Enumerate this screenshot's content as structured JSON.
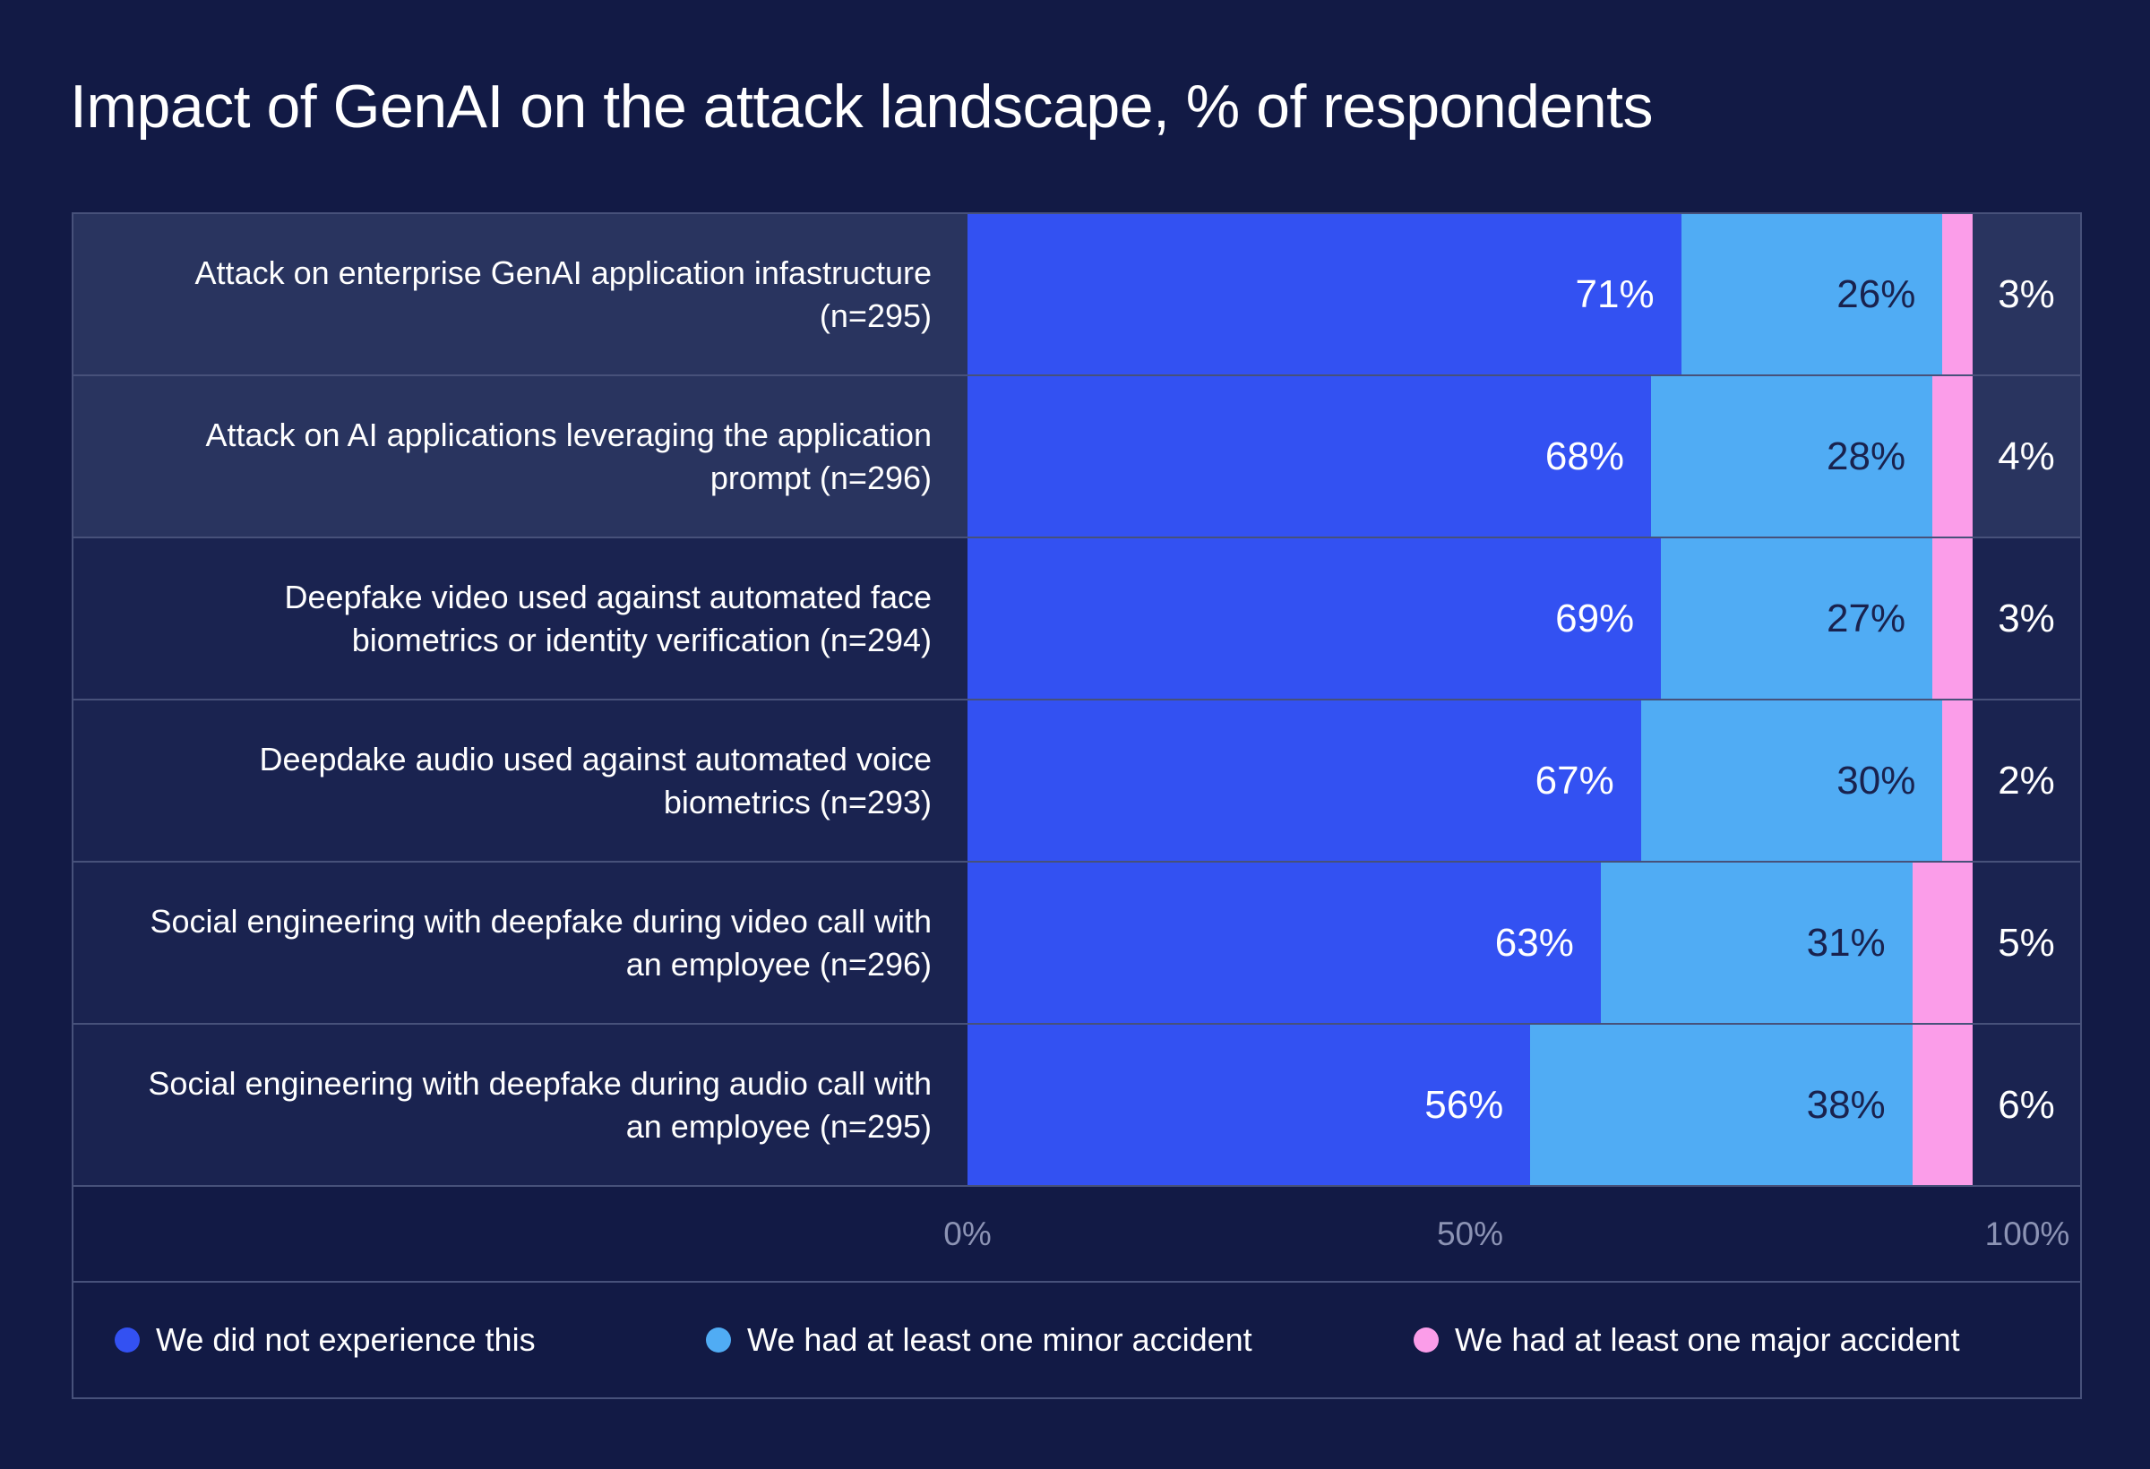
{
  "title": "Impact of GenAI on the attack landscape, % of respondents",
  "colors": {
    "page_bg": "#121A45",
    "row_highlight_bg": "#29345F",
    "row_bg": "#1A2350",
    "border": "#47517A",
    "series_blue": "#3351F2",
    "series_light_blue": "#50ACF4",
    "series_pink": "#FB9DE9",
    "label_on_light_blue": "#19224E",
    "axis_text": "#8C93B4",
    "text": "#FFFFFF"
  },
  "rows": [
    {
      "label": "Attack on enterprise GenAI application infastructure (n=295)",
      "display": [
        "71%",
        "26%",
        "3%"
      ]
    },
    {
      "label": "Attack on AI applications leveraging the application prompt (n=296)",
      "display": [
        "68%",
        "28%",
        "4%"
      ]
    },
    {
      "label": "Deepfake video used against automated face biometrics or identity verification (n=294)",
      "display": [
        "69%",
        "27%",
        "3%"
      ]
    },
    {
      "label": "Deepdake audio used against automated voice biometrics (n=293)",
      "display": [
        "67%",
        "30%",
        "2%"
      ]
    },
    {
      "label": "Social engineering with deepfake during video call with an employee (n=296)",
      "display": [
        "63%",
        "31%",
        "5%"
      ]
    },
    {
      "label": "Social engineering with deepfake during audio call with an employee (n=295)",
      "display": [
        "56%",
        "38%",
        "6%"
      ]
    }
  ],
  "axis": {
    "ticks": [
      "0%",
      "50%",
      "100%"
    ]
  },
  "legend": [
    {
      "label": "We did not experience this"
    },
    {
      "label": "We had at least one minor accident"
    },
    {
      "label": "We had at least one major accident"
    }
  ],
  "chart_data": {
    "type": "bar",
    "orientation": "horizontal",
    "stacked": true,
    "title": "Impact of GenAI on the attack landscape, % of respondents",
    "categories": [
      "Attack on enterprise GenAI application infastructure (n=295)",
      "Attack on AI applications leveraging the application prompt (n=296)",
      "Deepfake video used against automated face biometrics or identity verification (n=294)",
      "Deepdake audio used against automated voice biometrics (n=293)",
      "Social engineering with deepfake during video call with an employee (n=296)",
      "Social engineering with deepfake during audio call with an employee (n=295)"
    ],
    "series": [
      {
        "name": "We did not experience this",
        "color": "#3351F2",
        "values": [
          71,
          68,
          69,
          67,
          63,
          56
        ]
      },
      {
        "name": "We had at least one minor accident",
        "color": "#50ACF4",
        "values": [
          26,
          28,
          27,
          30,
          31,
          38
        ]
      },
      {
        "name": "We had at least one major accident",
        "color": "#FB9DE9",
        "values": [
          3,
          4,
          3,
          2,
          5,
          6
        ]
      }
    ],
    "xlabel": "",
    "ylabel": "",
    "xlim": [
      0,
      100
    ],
    "x_ticks": [
      "0%",
      "50%",
      "100%"
    ],
    "x_tick_values": [
      0,
      50,
      100
    ],
    "grid": false,
    "legend_position": "bottom",
    "value_labels": "inside-right; third series value shown outside bar"
  }
}
